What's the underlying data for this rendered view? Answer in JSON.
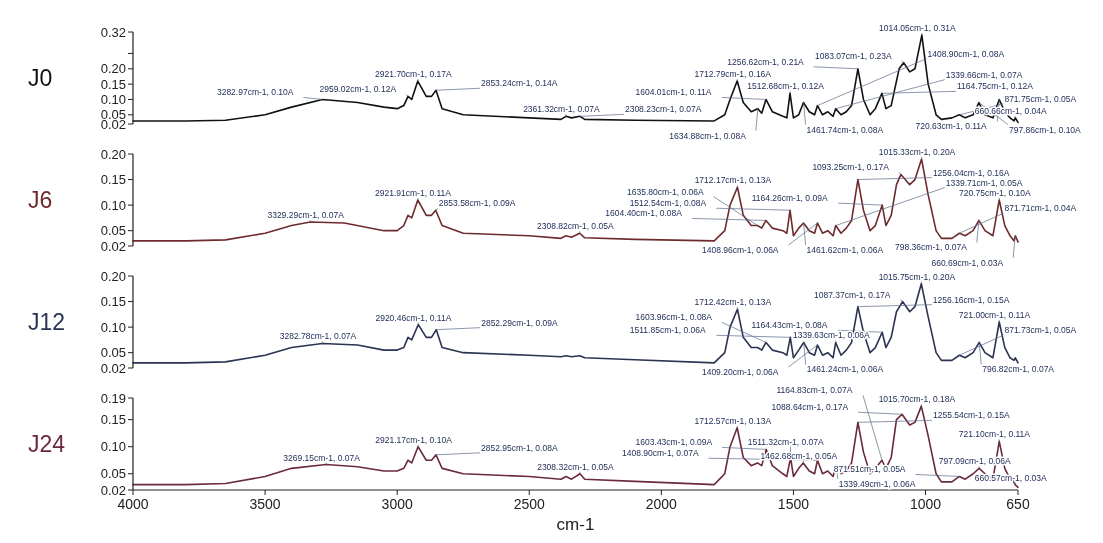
{
  "chart_data": [
    {
      "type": "line",
      "xlim": [
        4000,
        650
      ],
      "xticks": [
        4000,
        3500,
        3000,
        2500,
        2000,
        1500,
        1000,
        650
      ],
      "ylim": [
        0.02,
        0.32
      ],
      "yticks": [
        {
          "value": 0.02,
          "label": "0.02"
        },
        {
          "value": 0.05,
          "label": "0.05"
        },
        {
          "value": 0.1,
          "label": "0.10"
        },
        {
          "value": 0.15,
          "label": "0.15"
        },
        {
          "value": 0.2,
          "label": "0.20"
        },
        {
          "value": 0.25,
          "label": null
        },
        {
          "value": 0.32,
          "label": "0.32"
        }
      ],
      "tick_labels": "y",
      "x": [
        4000,
        3800,
        3650,
        3500,
        3400,
        3283,
        3150,
        3050,
        3000,
        2975,
        2959,
        2945,
        2922,
        2890,
        2870,
        2853,
        2830,
        2750,
        2500,
        2380,
        2361,
        2340,
        2308,
        2290,
        2100,
        1800,
        1760,
        1740,
        1713,
        1690,
        1660,
        1635,
        1620,
        1604,
        1580,
        1540,
        1525,
        1513,
        1500,
        1480,
        1462,
        1440,
        1420,
        1409,
        1390,
        1370,
        1350,
        1340,
        1320,
        1300,
        1280,
        1256,
        1235,
        1210,
        1190,
        1165,
        1150,
        1130,
        1100,
        1083,
        1060,
        1040,
        1014,
        990,
        960,
        940,
        900,
        872,
        850,
        820,
        798,
        775,
        745,
        721,
        700,
        680,
        665,
        660,
        650
      ],
      "series": [
        {
          "name": "J0",
          "color": "#111111",
          "values": [
            0.03,
            0.03,
            0.032,
            0.05,
            0.075,
            0.1,
            0.09,
            0.075,
            0.07,
            0.08,
            0.11,
            0.1,
            0.16,
            0.11,
            0.11,
            0.13,
            0.07,
            0.05,
            0.04,
            0.035,
            0.045,
            0.04,
            0.045,
            0.035,
            0.032,
            0.03,
            0.05,
            0.1,
            0.16,
            0.09,
            0.06,
            0.07,
            0.055,
            0.1,
            0.06,
            0.045,
            0.04,
            0.12,
            0.04,
            0.05,
            0.09,
            0.06,
            0.05,
            0.08,
            0.05,
            0.06,
            0.045,
            0.07,
            0.05,
            0.06,
            0.08,
            0.2,
            0.1,
            0.05,
            0.07,
            0.12,
            0.07,
            0.08,
            0.2,
            0.22,
            0.19,
            0.2,
            0.31,
            0.15,
            0.05,
            0.035,
            0.04,
            0.05,
            0.04,
            0.05,
            0.09,
            0.05,
            0.04,
            0.1,
            0.06,
            0.04,
            0.03,
            0.04,
            0.025
          ]
        }
      ],
      "annotations": [
        {
          "text": "3282.97cm-1, 0.10A",
          "x": 3282.97,
          "y": 0.1
        },
        {
          "text": "2959.02cm-1, 0.12A",
          "x": 2959.02,
          "y": 0.11
        },
        {
          "text": "2921.70cm-1, 0.17A",
          "x": 2921.7,
          "y": 0.16
        },
        {
          "text": "2853.24cm-1, 0.14A",
          "x": 2853.24,
          "y": 0.13
        },
        {
          "text": "2361.32cm-1, 0.07A",
          "x": 2361.32,
          "y": 0.045
        },
        {
          "text": "2308.23cm-1, 0.07A",
          "x": 2308.23,
          "y": 0.045
        },
        {
          "text": "1712.79cm-1, 0.16A",
          "x": 1712.79,
          "y": 0.16
        },
        {
          "text": "1634.88cm-1, 0.08A",
          "x": 1634.88,
          "y": 0.07
        },
        {
          "text": "1604.01cm-1, 0.11A",
          "x": 1604.01,
          "y": 0.1
        },
        {
          "text": "1512.68cm-1, 0.12A",
          "x": 1512.68,
          "y": 0.12
        },
        {
          "text": "1461.74cm-1, 0.08A",
          "x": 1461.74,
          "y": 0.09
        },
        {
          "text": "1408.90cm-1, 0.08A",
          "x": 1408.9,
          "y": 0.08
        },
        {
          "text": "1339.66cm-1, 0.07A",
          "x": 1339.66,
          "y": 0.07
        },
        {
          "text": "1256.62cm-1, 0.21A",
          "x": 1256.62,
          "y": 0.2
        },
        {
          "text": "1164.75cm-1, 0.12A",
          "x": 1164.75,
          "y": 0.12
        },
        {
          "text": "1083.07cm-1, 0.23A",
          "x": 1083.07,
          "y": 0.22
        },
        {
          "text": "1014.05cm-1, 0.31A",
          "x": 1014.05,
          "y": 0.31
        },
        {
          "text": "871.75cm-1, 0.05A",
          "x": 871.75,
          "y": 0.05
        },
        {
          "text": "797.86cm-1, 0.10A",
          "x": 797.86,
          "y": 0.09
        },
        {
          "text": "720.63cm-1, 0.11A",
          "x": 720.63,
          "y": 0.1
        },
        {
          "text": "660.66cm-1, 0.04A",
          "x": 660.66,
          "y": 0.04
        }
      ]
    },
    {
      "type": "line",
      "xlim": [
        4000,
        650
      ],
      "xticks": [
        4000,
        3500,
        3000,
        2500,
        2000,
        1500,
        1000,
        650
      ],
      "ylim": [
        0.02,
        0.2
      ],
      "yticks": [
        {
          "value": 0.02,
          "label": "0.02"
        },
        {
          "value": 0.05,
          "label": "0.05"
        },
        {
          "value": 0.1,
          "label": "0.10"
        },
        {
          "value": 0.15,
          "label": "0.15"
        },
        {
          "value": 0.2,
          "label": "0.20"
        }
      ],
      "tick_labels": "y",
      "x": [
        4000,
        3800,
        3650,
        3500,
        3400,
        3329,
        3200,
        3050,
        3000,
        2975,
        2959,
        2945,
        2922,
        2890,
        2870,
        2854,
        2830,
        2750,
        2500,
        2380,
        2361,
        2340,
        2309,
        2290,
        2100,
        1800,
        1760,
        1740,
        1712,
        1690,
        1660,
        1636,
        1620,
        1604,
        1580,
        1540,
        1525,
        1513,
        1500,
        1480,
        1462,
        1440,
        1420,
        1409,
        1390,
        1370,
        1350,
        1340,
        1320,
        1300,
        1280,
        1256,
        1235,
        1210,
        1190,
        1164,
        1150,
        1130,
        1110,
        1093,
        1060,
        1040,
        1015,
        990,
        960,
        940,
        900,
        872,
        850,
        820,
        798,
        775,
        745,
        721,
        700,
        680,
        665,
        660,
        650
      ],
      "series": [
        {
          "name": "J6",
          "color": "#6e2b2e",
          "values": [
            0.03,
            0.03,
            0.032,
            0.045,
            0.06,
            0.067,
            0.065,
            0.05,
            0.05,
            0.06,
            0.08,
            0.075,
            0.11,
            0.08,
            0.08,
            0.09,
            0.06,
            0.045,
            0.04,
            0.035,
            0.04,
            0.037,
            0.045,
            0.036,
            0.033,
            0.03,
            0.05,
            0.1,
            0.135,
            0.08,
            0.06,
            0.06,
            0.055,
            0.07,
            0.055,
            0.05,
            0.045,
            0.09,
            0.04,
            0.055,
            0.065,
            0.05,
            0.045,
            0.065,
            0.045,
            0.05,
            0.04,
            0.06,
            0.045,
            0.055,
            0.07,
            0.15,
            0.09,
            0.05,
            0.06,
            0.1,
            0.06,
            0.08,
            0.14,
            0.16,
            0.14,
            0.15,
            0.19,
            0.12,
            0.05,
            0.035,
            0.035,
            0.045,
            0.04,
            0.05,
            0.07,
            0.05,
            0.04,
            0.11,
            0.06,
            0.04,
            0.03,
            0.04,
            0.028
          ]
        }
      ],
      "annotations": [
        {
          "text": "3329.29cm-1, 0.07A",
          "x": 3329.29,
          "y": 0.067
        },
        {
          "text": "2921.91cm-1, 0.11A",
          "x": 2921.91,
          "y": 0.11
        },
        {
          "text": "2853.58cm-1, 0.09A",
          "x": 2853.58,
          "y": 0.09
        },
        {
          "text": "2308.82cm-1, 0.05A",
          "x": 2308.82,
          "y": 0.045
        },
        {
          "text": "1712.17cm-1, 0.13A",
          "x": 1712.17,
          "y": 0.135
        },
        {
          "text": "1635.80cm-1, 0.06A",
          "x": 1635.8,
          "y": 0.06
        },
        {
          "text": "1604.40cm-1, 0.08A",
          "x": 1604.4,
          "y": 0.07
        },
        {
          "text": "1512.54cm-1, 0.08A",
          "x": 1512.54,
          "y": 0.09
        },
        {
          "text": "1461.62cm-1, 0.06A",
          "x": 1461.62,
          "y": 0.065
        },
        {
          "text": "1408.96cm-1, 0.06A",
          "x": 1408.96,
          "y": 0.065
        },
        {
          "text": "1339.71cm-1, 0.05A",
          "x": 1339.71,
          "y": 0.06
        },
        {
          "text": "1256.04cm-1, 0.16A",
          "x": 1256.04,
          "y": 0.15
        },
        {
          "text": "1164.26cm-1, 0.09A",
          "x": 1164.26,
          "y": 0.1
        },
        {
          "text": "1093.25cm-1, 0.17A",
          "x": 1093.25,
          "y": 0.16
        },
        {
          "text": "1015.33cm-1, 0.20A",
          "x": 1015.33,
          "y": 0.19
        },
        {
          "text": "871.71cm-1, 0.04A",
          "x": 871.71,
          "y": 0.045
        },
        {
          "text": "798.36cm-1, 0.07A",
          "x": 798.36,
          "y": 0.07
        },
        {
          "text": "720.75cm-1, 0.10A",
          "x": 720.75,
          "y": 0.11
        },
        {
          "text": "660.69cm-1, 0.03A",
          "x": 660.69,
          "y": 0.04
        }
      ]
    },
    {
      "type": "line",
      "xlim": [
        4000,
        650
      ],
      "xticks": [
        4000,
        3500,
        3000,
        2500,
        2000,
        1500,
        1000,
        650
      ],
      "ylim": [
        0.02,
        0.2
      ],
      "yticks": [
        {
          "value": 0.02,
          "label": "0.02"
        },
        {
          "value": 0.05,
          "label": "0.05"
        },
        {
          "value": 0.1,
          "label": "0.10"
        },
        {
          "value": 0.15,
          "label": "0.15"
        },
        {
          "value": 0.2,
          "label": "0.20"
        }
      ],
      "tick_labels": "y",
      "x": [
        4000,
        3800,
        3650,
        3500,
        3400,
        3283,
        3150,
        3050,
        3000,
        2975,
        2959,
        2945,
        2920,
        2890,
        2870,
        2852,
        2830,
        2750,
        2500,
        2380,
        2361,
        2340,
        2309,
        2290,
        2100,
        1800,
        1760,
        1740,
        1712,
        1690,
        1660,
        1636,
        1620,
        1604,
        1580,
        1540,
        1525,
        1512,
        1500,
        1480,
        1461,
        1440,
        1420,
        1409,
        1390,
        1370,
        1350,
        1340,
        1320,
        1300,
        1280,
        1256,
        1235,
        1210,
        1190,
        1164,
        1150,
        1130,
        1110,
        1087,
        1060,
        1040,
        1016,
        990,
        960,
        940,
        900,
        872,
        850,
        820,
        797,
        775,
        745,
        721,
        700,
        680,
        665,
        660,
        650
      ],
      "series": [
        {
          "name": "J12",
          "color": "#2a3350",
          "values": [
            0.03,
            0.03,
            0.032,
            0.045,
            0.06,
            0.068,
            0.065,
            0.055,
            0.055,
            0.06,
            0.08,
            0.075,
            0.105,
            0.08,
            0.08,
            0.095,
            0.06,
            0.05,
            0.045,
            0.042,
            0.044,
            0.042,
            0.044,
            0.04,
            0.036,
            0.03,
            0.05,
            0.1,
            0.135,
            0.08,
            0.06,
            0.06,
            0.055,
            0.07,
            0.055,
            0.05,
            0.045,
            0.08,
            0.04,
            0.055,
            0.07,
            0.05,
            0.045,
            0.065,
            0.045,
            0.05,
            0.04,
            0.07,
            0.045,
            0.055,
            0.07,
            0.14,
            0.09,
            0.05,
            0.06,
            0.09,
            0.06,
            0.08,
            0.13,
            0.15,
            0.13,
            0.14,
            0.185,
            0.12,
            0.05,
            0.035,
            0.035,
            0.045,
            0.04,
            0.05,
            0.07,
            0.05,
            0.04,
            0.11,
            0.06,
            0.04,
            0.035,
            0.04,
            0.03
          ]
        }
      ],
      "annotations": [
        {
          "text": "3282.78cm-1, 0.07A",
          "x": 3282.78,
          "y": 0.068
        },
        {
          "text": "2920.46cm-1, 0.11A",
          "x": 2920.46,
          "y": 0.105
        },
        {
          "text": "2852.29cm-1, 0.09A",
          "x": 2852.29,
          "y": 0.095
        },
        {
          "text": "1712.42cm-1, 0.13A",
          "x": 1712.42,
          "y": 0.135
        },
        {
          "text": "1603.96cm-1, 0.08A",
          "x": 1603.96,
          "y": 0.07
        },
        {
          "text": "1511.85cm-1, 0.06A",
          "x": 1511.85,
          "y": 0.08
        },
        {
          "text": "1461.24cm-1, 0.06A",
          "x": 1461.24,
          "y": 0.07
        },
        {
          "text": "1409.20cm-1, 0.06A",
          "x": 1409.2,
          "y": 0.065
        },
        {
          "text": "1339.63cm-1, 0.06A",
          "x": 1339.63,
          "y": 0.07
        },
        {
          "text": "1256.16cm-1, 0.15A",
          "x": 1256.16,
          "y": 0.14
        },
        {
          "text": "1164.43cm-1, 0.08A",
          "x": 1164.43,
          "y": 0.09
        },
        {
          "text": "1087.37cm-1, 0.17A",
          "x": 1087.37,
          "y": 0.15
        },
        {
          "text": "1015.75cm-1, 0.20A",
          "x": 1015.75,
          "y": 0.185
        },
        {
          "text": "871.73cm-1, 0.05A",
          "x": 871.73,
          "y": 0.045
        },
        {
          "text": "796.82cm-1, 0.07A",
          "x": 796.82,
          "y": 0.07
        },
        {
          "text": "721.00cm-1, 0.11A",
          "x": 721,
          "y": 0.11
        }
      ]
    },
    {
      "type": "line",
      "xlim": [
        4000,
        650
      ],
      "xticks": [
        4000,
        3500,
        3000,
        2500,
        2000,
        1500,
        1000,
        650
      ],
      "ylim": [
        0.02,
        0.19
      ],
      "yticks": [
        {
          "value": 0.02,
          "label": "0.02"
        },
        {
          "value": 0.05,
          "label": "0.05"
        },
        {
          "value": 0.1,
          "label": "0.10"
        },
        {
          "value": 0.15,
          "label": "0.15"
        },
        {
          "value": 0.19,
          "label": "0.19"
        }
      ],
      "xlabel": "cm-1",
      "x": [
        4000,
        3800,
        3650,
        3500,
        3400,
        3269,
        3150,
        3050,
        3000,
        2975,
        2959,
        2945,
        2921,
        2890,
        2870,
        2853,
        2830,
        2750,
        2500,
        2380,
        2361,
        2340,
        2308,
        2290,
        2100,
        1800,
        1760,
        1740,
        1713,
        1690,
        1660,
        1636,
        1620,
        1603,
        1580,
        1540,
        1525,
        1511,
        1500,
        1480,
        1463,
        1440,
        1420,
        1409,
        1390,
        1370,
        1350,
        1339,
        1320,
        1300,
        1280,
        1256,
        1235,
        1210,
        1190,
        1165,
        1150,
        1130,
        1110,
        1089,
        1060,
        1040,
        1016,
        990,
        960,
        940,
        900,
        872,
        850,
        820,
        797,
        775,
        745,
        721,
        700,
        680,
        665,
        661,
        650
      ],
      "series": [
        {
          "name": "J24",
          "color": "#6a2a3c",
          "values": [
            0.03,
            0.03,
            0.032,
            0.045,
            0.06,
            0.067,
            0.063,
            0.055,
            0.055,
            0.06,
            0.075,
            0.07,
            0.1,
            0.075,
            0.075,
            0.085,
            0.06,
            0.05,
            0.045,
            0.04,
            0.045,
            0.04,
            0.05,
            0.04,
            0.036,
            0.03,
            0.05,
            0.1,
            0.135,
            0.08,
            0.065,
            0.07,
            0.065,
            0.095,
            0.065,
            0.05,
            0.045,
            0.08,
            0.045,
            0.06,
            0.07,
            0.055,
            0.05,
            0.075,
            0.05,
            0.055,
            0.045,
            0.065,
            0.05,
            0.055,
            0.07,
            0.145,
            0.09,
            0.05,
            0.06,
            0.075,
            0.06,
            0.08,
            0.15,
            0.16,
            0.14,
            0.145,
            0.175,
            0.12,
            0.05,
            0.035,
            0.035,
            0.045,
            0.04,
            0.05,
            0.06,
            0.05,
            0.04,
            0.11,
            0.06,
            0.04,
            0.035,
            0.03,
            0.025
          ]
        }
      ],
      "annotations": [
        {
          "text": "3269.15cm-1, 0.07A",
          "x": 3269.15,
          "y": 0.067
        },
        {
          "text": "2921.17cm-1, 0.10A",
          "x": 2921.17,
          "y": 0.1
        },
        {
          "text": "2852.95cm-1, 0.08A",
          "x": 2852.95,
          "y": 0.085
        },
        {
          "text": "2308.32cm-1, 0.05A",
          "x": 2308.32,
          "y": 0.05
        },
        {
          "text": "1712.57cm-1, 0.13A",
          "x": 1712.57,
          "y": 0.135
        },
        {
          "text": "1603.43cm-1, 0.09A",
          "x": 1603.43,
          "y": 0.095
        },
        {
          "text": "1511.32cm-1, 0.07A",
          "x": 1511.32,
          "y": 0.08
        },
        {
          "text": "1462.68cm-1, 0.05A",
          "x": 1462.68,
          "y": 0.07
        },
        {
          "text": "1408.90cm-1, 0.07A",
          "x": 1408.9,
          "y": 0.075
        },
        {
          "text": "1339.49cm-1, 0.06A",
          "x": 1339.49,
          "y": 0.065
        },
        {
          "text": "1255.54cm-1, 0.15A",
          "x": 1255.54,
          "y": 0.145
        },
        {
          "text": "1164.83cm-1, 0.07A",
          "x": 1164.83,
          "y": 0.075
        },
        {
          "text": "1088.64cm-1, 0.17A",
          "x": 1088.64,
          "y": 0.16
        },
        {
          "text": "1015.70cm-1, 0.18A",
          "x": 1015.7,
          "y": 0.175
        },
        {
          "text": "871.51cm-1, 0.05A",
          "x": 871.51,
          "y": 0.045
        },
        {
          "text": "797.09cm-1, 0.06A",
          "x": 797.09,
          "y": 0.06
        },
        {
          "text": "721.10cm-1, 0.11A",
          "x": 721.1,
          "y": 0.11
        },
        {
          "text": "660.57cm-1, 0.03A",
          "x": 660.57,
          "y": 0.03
        }
      ]
    }
  ]
}
